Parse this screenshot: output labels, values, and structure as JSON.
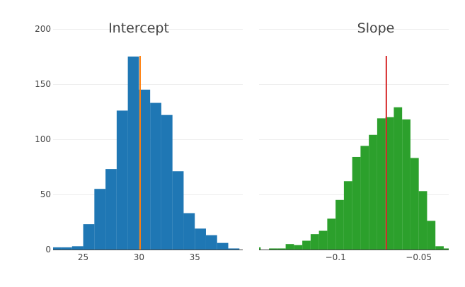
{
  "chart_data": [
    {
      "type": "bar",
      "title": "Intercept",
      "color": "#1f77b4",
      "line_color": "#ff7f0e",
      "reference_line_x": 30.1,
      "bin_width": 1,
      "bin_starts": [
        22,
        23,
        24,
        25,
        26,
        27,
        28,
        29,
        30,
        31,
        32,
        33,
        34,
        35,
        36,
        37,
        38
      ],
      "values": [
        2,
        2,
        3,
        23,
        55,
        73,
        126,
        175,
        145,
        133,
        122,
        71,
        33,
        19,
        13,
        6,
        1
      ],
      "xlim": [
        22.3,
        39.3
      ],
      "x_ticks": [
        25,
        30,
        35
      ],
      "x_tick_labels": [
        "25",
        "30",
        "35"
      ],
      "ylim": [
        0,
        200
      ],
      "y_ticks": [
        0,
        50,
        100,
        150,
        200
      ],
      "y_tick_labels": [
        "0",
        "50",
        "100",
        "150",
        "200"
      ],
      "grid": true
    },
    {
      "type": "bar",
      "title": "Slope",
      "color": "#2ca02c",
      "line_color": "#d62728",
      "reference_line_x": -0.0695,
      "bin_width": 0.005,
      "bin_starts": [
        -0.15,
        -0.145,
        -0.14,
        -0.135,
        -0.13,
        -0.125,
        -0.12,
        -0.115,
        -0.11,
        -0.105,
        -0.1,
        -0.095,
        -0.09,
        -0.085,
        -0.08,
        -0.075,
        -0.07,
        -0.065,
        -0.06,
        -0.055,
        -0.05,
        -0.045,
        -0.04
      ],
      "values": [
        2,
        0,
        1,
        1,
        5,
        4,
        8,
        14,
        17,
        28,
        45,
        62,
        84,
        94,
        104,
        119,
        120,
        129,
        118,
        83,
        53,
        26,
        3
      ],
      "extra_bins": [
        {
          "start": -0.035,
          "value": 1
        }
      ],
      "xlim": [
        -0.146,
        -0.032
      ],
      "x_ticks": [
        -0.1,
        -0.05
      ],
      "x_tick_labels": [
        "−0.1",
        "−0.05"
      ],
      "ylim": [
        0,
        200
      ],
      "y_ticks": [
        0,
        50,
        100,
        150,
        200
      ],
      "grid": true
    }
  ]
}
